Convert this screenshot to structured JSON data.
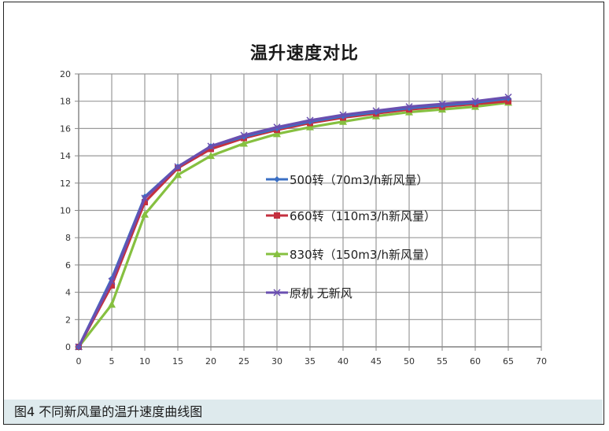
{
  "chart_data": {
    "type": "line",
    "title": "温升速度对比",
    "xlabel": "",
    "ylabel": "",
    "x": [
      0,
      5,
      10,
      15,
      20,
      25,
      30,
      35,
      40,
      45,
      50,
      55,
      60,
      65
    ],
    "xlim": [
      0,
      70
    ],
    "ylim": [
      0,
      20
    ],
    "xticks": [
      0,
      5,
      10,
      15,
      20,
      25,
      30,
      35,
      40,
      45,
      50,
      55,
      60,
      65,
      70
    ],
    "yticks": [
      0,
      2,
      4,
      6,
      8,
      10,
      12,
      14,
      16,
      18,
      20
    ],
    "grid": true,
    "legend_position": "inside-center",
    "series": [
      {
        "name": "500转（70m3/h新风量）",
        "color": "#3a6fc4",
        "marker": "diamond",
        "values": [
          0,
          5.0,
          11.0,
          13.2,
          14.7,
          15.4,
          16.0,
          16.5,
          16.9,
          17.2,
          17.5,
          17.7,
          17.9,
          18.2
        ]
      },
      {
        "name": "660转（110m3/h新风量）",
        "color": "#c4303f",
        "marker": "square",
        "values": [
          0,
          4.5,
          10.6,
          13.1,
          14.5,
          15.3,
          15.9,
          16.4,
          16.8,
          17.1,
          17.4,
          17.6,
          17.8,
          18.0
        ]
      },
      {
        "name": "830转（150m3/h新风量）",
        "color": "#86c040",
        "marker": "triangle",
        "values": [
          0,
          3.1,
          9.7,
          12.6,
          14.0,
          14.9,
          15.6,
          16.1,
          16.5,
          16.9,
          17.2,
          17.4,
          17.6,
          17.9
        ]
      },
      {
        "name": "原机 无新风",
        "color": "#6a4fb0",
        "marker": "x",
        "values": [
          0,
          4.8,
          10.9,
          13.2,
          14.7,
          15.5,
          16.1,
          16.6,
          17.0,
          17.3,
          17.6,
          17.8,
          18.0,
          18.3
        ]
      }
    ]
  },
  "figure": {
    "caption": "图4  不同新风量的温升速度曲线图"
  }
}
